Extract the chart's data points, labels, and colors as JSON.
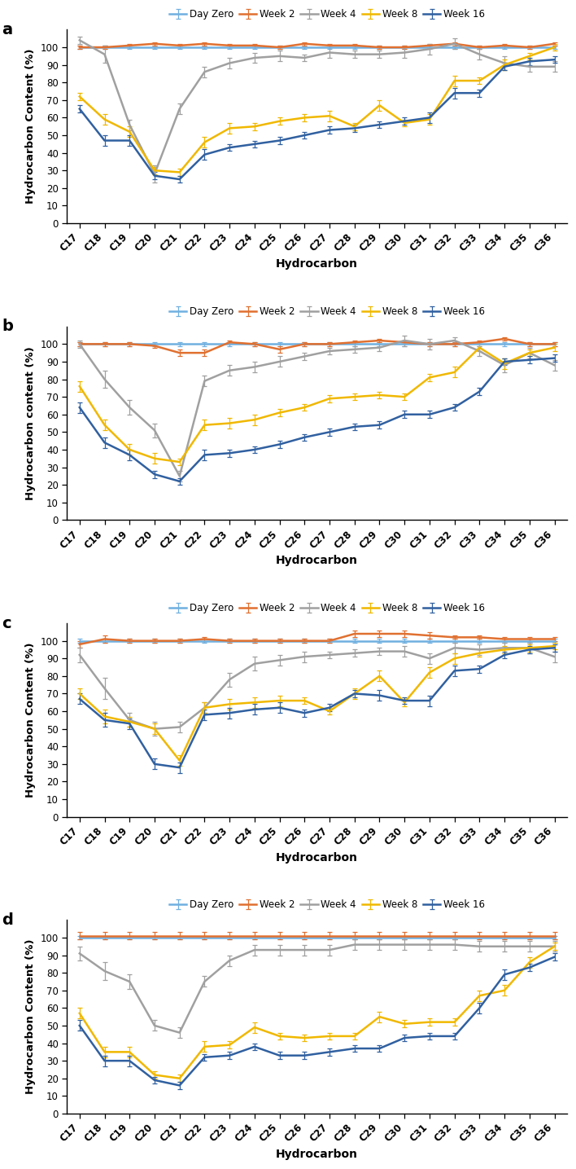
{
  "x_labels": [
    "C17",
    "C18",
    "C19",
    "C20",
    "C21",
    "C22",
    "C23",
    "C24",
    "C25",
    "C26",
    "C27",
    "C28",
    "C29",
    "C30",
    "C31",
    "C32",
    "C33",
    "C34",
    "C35",
    "C36"
  ],
  "panel_labels": [
    "a",
    "b",
    "c",
    "d"
  ],
  "legend_labels": [
    "Day Zero",
    "Week 2",
    "Week 4",
    "Week 8",
    "Week 16"
  ],
  "colors": {
    "Day Zero": "#70B0E0",
    "Week 2": "#E07030",
    "Week 4": "#A0A0A0",
    "Week 8": "#F0B800",
    "Week 16": "#3060A0"
  },
  "panels": {
    "a": {
      "Day Zero": [
        100,
        100,
        100,
        100,
        100,
        100,
        100,
        100,
        100,
        100,
        100,
        100,
        100,
        100,
        100,
        100,
        100,
        100,
        100,
        100
      ],
      "Week 2": [
        100,
        100,
        101,
        102,
        101,
        102,
        101,
        101,
        100,
        102,
        101,
        101,
        100,
        100,
        101,
        102,
        100,
        101,
        100,
        102
      ],
      "Week 4": [
        104,
        96,
        56,
        28,
        65,
        86,
        91,
        94,
        95,
        94,
        97,
        96,
        96,
        97,
        99,
        102,
        96,
        91,
        89,
        89
      ],
      "Week 8": [
        72,
        59,
        52,
        30,
        29,
        46,
        54,
        55,
        58,
        60,
        61,
        55,
        67,
        57,
        59,
        81,
        81,
        90,
        95,
        100
      ],
      "Week 16": [
        65,
        47,
        47,
        27,
        25,
        39,
        43,
        45,
        47,
        50,
        53,
        54,
        56,
        58,
        60,
        74,
        74,
        89,
        92,
        93
      ],
      "Day Zero_err": [
        1,
        1,
        1,
        1,
        1,
        1,
        1,
        1,
        1,
        1,
        1,
        1,
        1,
        1,
        1,
        1,
        1,
        1,
        1,
        1
      ],
      "Week 2_err": [
        1,
        1,
        1,
        1,
        1,
        1,
        1,
        1,
        1,
        1,
        1,
        1,
        1,
        1,
        1,
        1,
        1,
        1,
        1,
        1
      ],
      "Week 4_err": [
        2,
        5,
        3,
        5,
        3,
        3,
        3,
        3,
        3,
        2,
        3,
        2,
        2,
        3,
        3,
        3,
        3,
        4,
        3,
        3
      ],
      "Week 8_err": [
        2,
        3,
        3,
        2,
        2,
        3,
        3,
        2,
        2,
        2,
        3,
        2,
        3,
        2,
        3,
        3,
        2,
        3,
        2,
        2
      ],
      "Week 16_err": [
        2,
        3,
        3,
        2,
        2,
        3,
        2,
        2,
        2,
        2,
        2,
        2,
        2,
        2,
        3,
        3,
        2,
        2,
        2,
        2
      ]
    },
    "b": {
      "Day Zero": [
        100,
        100,
        100,
        100,
        100,
        100,
        100,
        100,
        100,
        100,
        100,
        100,
        100,
        100,
        100,
        100,
        100,
        100,
        100,
        100
      ],
      "Week 2": [
        100,
        100,
        100,
        99,
        95,
        95,
        101,
        100,
        97,
        100,
        100,
        101,
        102,
        101,
        100,
        100,
        101,
        103,
        100,
        100
      ],
      "Week 4": [
        100,
        80,
        64,
        51,
        25,
        79,
        85,
        87,
        90,
        93,
        96,
        97,
        98,
        102,
        100,
        102,
        96,
        88,
        95,
        88
      ],
      "Week 8": [
        76,
        54,
        40,
        35,
        33,
        54,
        55,
        57,
        61,
        64,
        69,
        70,
        71,
        70,
        81,
        84,
        98,
        89,
        95,
        98
      ],
      "Week 16": [
        64,
        44,
        37,
        26,
        22,
        37,
        38,
        40,
        43,
        47,
        50,
        53,
        54,
        60,
        60,
        64,
        73,
        90,
        91,
        92
      ],
      "Day Zero_err": [
        1,
        1,
        1,
        1,
        1,
        1,
        1,
        1,
        1,
        1,
        1,
        1,
        1,
        1,
        1,
        1,
        1,
        1,
        1,
        1
      ],
      "Week 2_err": [
        1,
        1,
        1,
        1,
        2,
        2,
        1,
        1,
        2,
        1,
        1,
        1,
        1,
        1,
        1,
        1,
        1,
        1,
        1,
        1
      ],
      "Week 4_err": [
        2,
        5,
        4,
        4,
        3,
        3,
        3,
        3,
        3,
        2,
        2,
        2,
        2,
        3,
        3,
        2,
        3,
        4,
        3,
        3
      ],
      "Week 8_err": [
        3,
        3,
        3,
        3,
        2,
        3,
        3,
        3,
        2,
        2,
        2,
        2,
        2,
        2,
        2,
        3,
        2,
        3,
        2,
        2
      ],
      "Week 16_err": [
        3,
        3,
        3,
        2,
        2,
        3,
        2,
        2,
        2,
        2,
        2,
        2,
        2,
        2,
        2,
        2,
        2,
        2,
        2,
        2
      ]
    },
    "c": {
      "Day Zero": [
        100,
        100,
        100,
        100,
        100,
        100,
        100,
        100,
        100,
        100,
        100,
        100,
        100,
        100,
        100,
        100,
        100,
        100,
        100,
        100
      ],
      "Week 2": [
        98,
        101,
        100,
        100,
        100,
        101,
        100,
        100,
        100,
        100,
        100,
        104,
        104,
        104,
        103,
        102,
        102,
        101,
        101,
        101
      ],
      "Week 4": [
        92,
        73,
        55,
        50,
        51,
        62,
        78,
        87,
        89,
        91,
        92,
        93,
        94,
        94,
        90,
        96,
        95,
        96,
        96,
        91
      ],
      "Week 8": [
        70,
        57,
        54,
        50,
        32,
        62,
        64,
        65,
        66,
        66,
        60,
        70,
        80,
        65,
        82,
        90,
        93,
        95,
        96,
        97
      ],
      "Week 16": [
        67,
        55,
        53,
        30,
        28,
        58,
        59,
        61,
        62,
        59,
        62,
        70,
        69,
        66,
        66,
        83,
        84,
        92,
        95,
        96
      ],
      "Day Zero_err": [
        1,
        1,
        1,
        1,
        1,
        1,
        1,
        1,
        1,
        1,
        1,
        1,
        1,
        1,
        1,
        1,
        1,
        1,
        1,
        1
      ],
      "Week 2_err": [
        2,
        2,
        1,
        1,
        1,
        1,
        1,
        1,
        1,
        1,
        1,
        2,
        2,
        2,
        2,
        1,
        1,
        1,
        1,
        1
      ],
      "Week 4_err": [
        4,
        6,
        4,
        4,
        3,
        3,
        4,
        4,
        3,
        3,
        2,
        2,
        2,
        3,
        3,
        3,
        3,
        3,
        3,
        3
      ],
      "Week 8_err": [
        3,
        4,
        3,
        3,
        3,
        3,
        3,
        3,
        3,
        2,
        2,
        3,
        3,
        2,
        3,
        3,
        2,
        2,
        2,
        2
      ],
      "Week 16_err": [
        3,
        4,
        3,
        3,
        3,
        3,
        3,
        3,
        3,
        2,
        2,
        2,
        3,
        2,
        3,
        3,
        2,
        2,
        2,
        2
      ]
    },
    "d": {
      "Day Zero": [
        100,
        100,
        100,
        100,
        100,
        100,
        100,
        100,
        100,
        100,
        100,
        100,
        100,
        100,
        100,
        100,
        100,
        100,
        100,
        100
      ],
      "Week 2": [
        101,
        101,
        101,
        101,
        101,
        101,
        101,
        101,
        101,
        101,
        101,
        101,
        101,
        101,
        101,
        101,
        101,
        101,
        101,
        101
      ],
      "Week 4": [
        91,
        81,
        75,
        50,
        46,
        75,
        87,
        93,
        93,
        93,
        93,
        96,
        96,
        96,
        96,
        96,
        95,
        95,
        95,
        95
      ],
      "Week 8": [
        57,
        35,
        35,
        22,
        20,
        38,
        39,
        49,
        44,
        43,
        44,
        44,
        55,
        51,
        52,
        52,
        67,
        70,
        86,
        95
      ],
      "Week 16": [
        50,
        30,
        30,
        19,
        16,
        32,
        33,
        38,
        33,
        33,
        35,
        37,
        37,
        43,
        44,
        44,
        60,
        79,
        83,
        89
      ],
      "Day Zero_err": [
        1,
        1,
        1,
        1,
        1,
        1,
        1,
        1,
        1,
        1,
        1,
        1,
        1,
        1,
        1,
        1,
        1,
        1,
        1,
        1
      ],
      "Week 2_err": [
        2,
        2,
        2,
        2,
        2,
        2,
        2,
        2,
        2,
        2,
        2,
        2,
        2,
        2,
        2,
        2,
        2,
        2,
        2,
        2
      ],
      "Week 4_err": [
        4,
        5,
        4,
        3,
        3,
        3,
        3,
        3,
        3,
        3,
        3,
        3,
        3,
        3,
        3,
        3,
        3,
        3,
        3,
        3
      ],
      "Week 8_err": [
        3,
        3,
        3,
        2,
        2,
        3,
        2,
        3,
        2,
        2,
        2,
        2,
        3,
        2,
        2,
        2,
        3,
        3,
        3,
        2
      ],
      "Week 16_err": [
        3,
        3,
        3,
        2,
        2,
        2,
        2,
        2,
        2,
        2,
        2,
        2,
        2,
        2,
        2,
        2,
        3,
        3,
        2,
        2
      ]
    }
  },
  "ylabel_a": "Hydrocarbon Content (%)",
  "ylabel_b": "Hydrocarbon content (%)",
  "ylabel_c": "Hydrocarbon Content (%)",
  "ylabel_d": "Hydrocarbon Content (%)",
  "xlabel": "Hydrocarbon",
  "ylim": [
    0,
    110
  ],
  "yticks": [
    0,
    10,
    20,
    30,
    40,
    50,
    60,
    70,
    80,
    90,
    100
  ],
  "background_color": "#FFFFFF"
}
